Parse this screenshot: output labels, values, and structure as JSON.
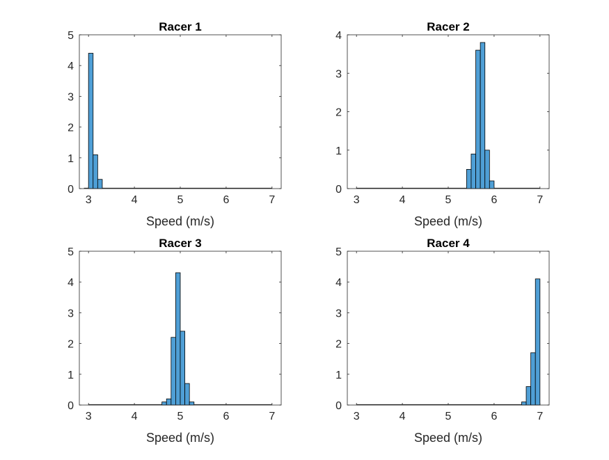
{
  "chart_data": [
    {
      "type": "bar",
      "title": "Racer 1",
      "xlabel": "Speed (m/s)",
      "ylabel": "",
      "xlim": [
        2.8,
        7.2
      ],
      "ylim": [
        0,
        5
      ],
      "xticks": [
        3,
        4,
        5,
        6,
        7
      ],
      "yticks": [
        0,
        1,
        2,
        3,
        4,
        5
      ],
      "bin_width": 0.1,
      "bin_start": 2.9,
      "bin_end": 7.0,
      "bins": [
        {
          "x0": 3.0,
          "x1": 3.1,
          "value": 4.4
        },
        {
          "x0": 3.1,
          "x1": 3.2,
          "value": 1.1
        },
        {
          "x0": 3.2,
          "x1": 3.3,
          "value": 0.3
        }
      ]
    },
    {
      "type": "bar",
      "title": "Racer 2",
      "xlabel": "Speed (m/s)",
      "ylabel": "",
      "xlim": [
        2.8,
        7.2
      ],
      "ylim": [
        0,
        4
      ],
      "xticks": [
        3,
        4,
        5,
        6,
        7
      ],
      "yticks": [
        0,
        1,
        2,
        3,
        4
      ],
      "bin_width": 0.1,
      "bin_start": 3.0,
      "bin_end": 7.0,
      "bins": [
        {
          "x0": 5.4,
          "x1": 5.5,
          "value": 0.5
        },
        {
          "x0": 5.5,
          "x1": 5.6,
          "value": 0.9
        },
        {
          "x0": 5.6,
          "x1": 5.7,
          "value": 3.6
        },
        {
          "x0": 5.7,
          "x1": 5.8,
          "value": 3.8
        },
        {
          "x0": 5.8,
          "x1": 5.9,
          "value": 1.0
        },
        {
          "x0": 5.9,
          "x1": 6.0,
          "value": 0.2
        }
      ]
    },
    {
      "type": "bar",
      "title": "Racer 3",
      "xlabel": "Speed (m/s)",
      "ylabel": "",
      "xlim": [
        2.8,
        7.2
      ],
      "ylim": [
        0,
        5
      ],
      "xticks": [
        3,
        4,
        5,
        6,
        7
      ],
      "yticks": [
        0,
        1,
        2,
        3,
        4,
        5
      ],
      "bin_width": 0.1,
      "bin_start": 3.0,
      "bin_end": 7.0,
      "bins": [
        {
          "x0": 4.6,
          "x1": 4.7,
          "value": 0.1
        },
        {
          "x0": 4.7,
          "x1": 4.8,
          "value": 0.2
        },
        {
          "x0": 4.8,
          "x1": 4.9,
          "value": 2.2
        },
        {
          "x0": 4.9,
          "x1": 5.0,
          "value": 4.3
        },
        {
          "x0": 5.0,
          "x1": 5.1,
          "value": 2.4
        },
        {
          "x0": 5.1,
          "x1": 5.2,
          "value": 0.7
        },
        {
          "x0": 5.2,
          "x1": 5.3,
          "value": 0.1
        }
      ]
    },
    {
      "type": "bar",
      "title": "Racer 4",
      "xlabel": "Speed (m/s)",
      "ylabel": "",
      "xlim": [
        2.8,
        7.2
      ],
      "ylim": [
        0,
        5
      ],
      "xticks": [
        3,
        4,
        5,
        6,
        7
      ],
      "yticks": [
        0,
        1,
        2,
        3,
        4,
        5
      ],
      "bin_width": 0.1,
      "bin_start": 3.0,
      "bin_end": 7.0,
      "bins": [
        {
          "x0": 6.6,
          "x1": 6.7,
          "value": 0.1
        },
        {
          "x0": 6.7,
          "x1": 6.8,
          "value": 0.6
        },
        {
          "x0": 6.8,
          "x1": 6.9,
          "value": 1.7
        },
        {
          "x0": 6.9,
          "x1": 7.0,
          "value": 4.1
        }
      ]
    }
  ],
  "colors": {
    "bar_fill": "#4f9fd6",
    "bar_edge": "#000000",
    "axis": "#262626",
    "baseline": "#2b2b2b"
  }
}
